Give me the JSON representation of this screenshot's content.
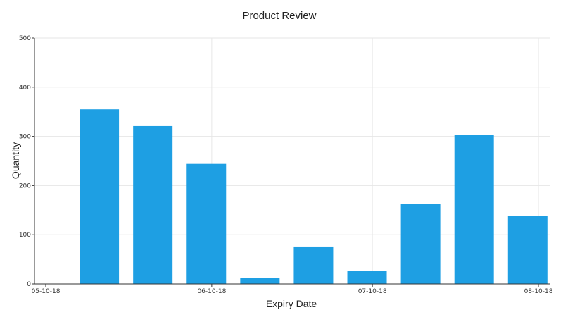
{
  "chart_data": {
    "type": "bar",
    "title": "Product Review",
    "xlabel": "Expiry Date",
    "ylabel": "Quantity",
    "ylim": [
      0,
      500
    ],
    "yticks": [
      0,
      100,
      200,
      300,
      400,
      500
    ],
    "xticks": [
      "05-10-18",
      "06-10-18",
      "07-10-18",
      "08-10-18"
    ],
    "x_range_days": [
      "2018-05-10",
      "2018-08-10"
    ],
    "categories": [
      "2018-05-20",
      "2018-05-30",
      "2018-06-09",
      "2018-06-19",
      "2018-06-29",
      "2018-07-09",
      "2018-07-19",
      "2018-07-29",
      "2018-08-08"
    ],
    "values": [
      355,
      321,
      244,
      12,
      76,
      27,
      163,
      303,
      138
    ],
    "grid": true,
    "bar_color": "#1e9fe3"
  }
}
